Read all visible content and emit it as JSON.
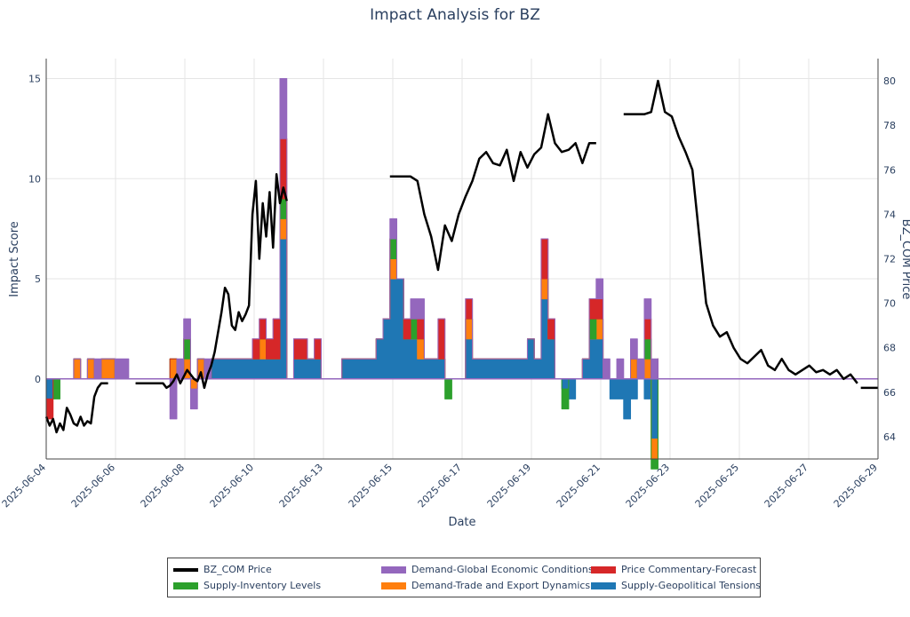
{
  "chart_data": {
    "type": "area",
    "title": "Impact Analysis for BZ",
    "xlabel": "Date",
    "ylabel": "Impact Score",
    "y2label": "BZ_COM Price",
    "ylim": [
      -4,
      16
    ],
    "y2lim": [
      63,
      81
    ],
    "x_ticks": [
      "2025-06-04",
      "2025-06-06",
      "2025-06-08",
      "2025-06-10",
      "2025-06-13",
      "2025-06-15",
      "2025-06-17",
      "2025-06-19",
      "2025-06-21",
      "2025-06-23",
      "2025-06-25",
      "2025-06-27",
      "2025-06-29"
    ],
    "y_ticks": [
      0,
      5,
      10,
      15
    ],
    "y2_ticks": [
      64,
      66,
      68,
      70,
      72,
      74,
      76,
      78,
      80
    ],
    "grid": true,
    "legend_position": "bottom",
    "colors": {
      "price": "#000000",
      "inventory": "#2ca02c",
      "economic": "#9467bd",
      "trade": "#ff7f0e",
      "commentary": "#d62728",
      "geopolitical": "#1f77b4"
    },
    "legend": [
      {
        "key": "price",
        "label": "BZ_COM Price"
      },
      {
        "key": "economic",
        "label": "Demand-Global Economic Conditions"
      },
      {
        "key": "commentary",
        "label": "Price Commentary-Forecast"
      },
      {
        "key": "inventory",
        "label": "Supply-Inventory Levels"
      },
      {
        "key": "trade",
        "label": "Demand-Trade and Export Dynamics"
      },
      {
        "key": "geopolitical",
        "label": "Supply-Geopolitical Tensions"
      }
    ],
    "x_index": [
      0,
      0.5,
      1,
      1.5,
      2,
      2.5,
      3,
      3.5,
      4,
      4.5,
      5,
      5.5,
      6,
      6.5,
      7,
      7.5,
      8,
      8.5,
      9,
      9.5,
      10,
      10.5,
      11,
      11.5,
      12,
      12.5,
      13,
      13.5,
      14,
      14.5,
      15,
      15.5,
      16,
      16.5,
      17,
      17.5,
      18,
      18.5,
      19,
      19.5,
      20,
      20.5,
      21,
      21.5,
      22,
      22.5,
      23,
      23.5,
      24,
      24.5,
      25,
      25.5,
      26,
      26.5,
      27,
      27.5,
      28,
      28.5,
      29,
      29.5,
      30,
      30.5,
      31,
      31.5,
      32,
      32.5,
      33,
      33.5,
      34,
      34.5,
      35,
      35.5,
      36,
      36.5,
      37,
      37.5,
      38,
      38.5,
      39,
      39.5,
      40,
      40.5,
      41,
      41.5,
      42,
      42.5,
      43,
      43.5,
      44,
      44.5
    ],
    "series": [
      {
        "key": "geopolitical",
        "name": "Supply-Geopolitical Tensions",
        "values": [
          -1,
          0,
          0,
          0,
          0,
          0,
          0,
          0,
          0,
          0,
          0,
          0,
          0,
          0,
          0,
          0,
          0,
          0,
          0,
          0,
          0,
          0,
          0,
          0,
          1,
          1,
          1,
          1,
          1,
          1,
          1,
          1,
          1,
          1,
          7,
          0,
          1,
          1,
          1,
          1,
          0,
          0,
          0,
          1,
          1,
          1,
          1,
          1,
          2,
          3,
          5,
          5,
          2,
          2,
          1,
          1,
          1,
          1,
          0,
          0,
          0,
          2,
          1,
          1,
          1,
          1,
          1,
          1,
          1,
          1,
          2,
          1,
          4,
          2,
          0,
          -0.5,
          -1,
          0,
          1,
          2,
          2,
          0,
          -1,
          -1,
          -2,
          -1,
          0,
          -1,
          -3,
          0
        ]
      },
      {
        "key": "trade",
        "name": "Demand-Trade and Export Dynamics",
        "values": [
          0,
          0,
          0,
          0,
          1,
          0,
          1,
          0,
          1,
          1,
          0,
          0,
          0,
          0,
          0,
          0,
          0,
          0,
          1,
          0,
          1,
          -0.5,
          1,
          0,
          0,
          0,
          0,
          0,
          0,
          0,
          0,
          1,
          0,
          0,
          1,
          0,
          0,
          0,
          0,
          0,
          0,
          0,
          0,
          0,
          0,
          0,
          0,
          0,
          0,
          0,
          1,
          0,
          0,
          0,
          1,
          0,
          0,
          0,
          0,
          0,
          0,
          1,
          0,
          0,
          0,
          0,
          0,
          0,
          0,
          0,
          0,
          0,
          1,
          0,
          0,
          0,
          0,
          0,
          0,
          0,
          1,
          0,
          0,
          0,
          0,
          1,
          0,
          1,
          -1,
          1
        ]
      },
      {
        "key": "inventory",
        "name": "Supply-Inventory Levels",
        "values": [
          0,
          -1,
          0,
          0,
          0,
          0,
          0,
          0,
          0,
          0,
          0,
          0,
          0,
          0,
          0,
          0,
          0,
          0,
          0,
          0,
          1,
          0,
          0,
          0,
          0,
          0,
          0,
          0,
          0,
          0,
          0,
          0,
          0,
          0,
          1,
          0,
          0,
          0,
          0,
          0,
          0,
          0,
          0,
          0,
          0,
          0,
          0,
          0,
          0,
          0,
          1,
          0,
          0,
          1,
          0,
          0,
          0,
          0,
          -1,
          0,
          0,
          0,
          0,
          0,
          0,
          0,
          0,
          0,
          0,
          0,
          0,
          0,
          0,
          0,
          0,
          -1,
          0,
          0,
          0,
          1,
          0,
          0,
          0,
          0,
          0,
          0,
          0,
          1,
          -0.5,
          0
        ]
      },
      {
        "key": "commentary",
        "name": "Price Commentary-Forecast",
        "values": [
          -1,
          0,
          0,
          0,
          0,
          0,
          0,
          0,
          0,
          0,
          0,
          0,
          0,
          0,
          0,
          0,
          0,
          0,
          0,
          0,
          0,
          0,
          0,
          0,
          0,
          0,
          0,
          0,
          0,
          0,
          1,
          1,
          1,
          2,
          3,
          0,
          1,
          1,
          0,
          1,
          0,
          0,
          0,
          0,
          0,
          0,
          0,
          0,
          0,
          0,
          0,
          0,
          1,
          0,
          1,
          0,
          0,
          2,
          0,
          0,
          0,
          1,
          0,
          0,
          0,
          0,
          0,
          0,
          0,
          0,
          0,
          0,
          2,
          1,
          0,
          0,
          0,
          0,
          0,
          1,
          1,
          0,
          0,
          0,
          0,
          0,
          0,
          1,
          0,
          0
        ]
      },
      {
        "key": "economic",
        "name": "Demand-Global Economic Conditions",
        "values": [
          0,
          0,
          0,
          0,
          0,
          0,
          0,
          1,
          0,
          0,
          1,
          1,
          0,
          0,
          0,
          0,
          0,
          0,
          -2,
          1,
          1,
          -1,
          0,
          1,
          0,
          0,
          0,
          0,
          0,
          0,
          0,
          0,
          0,
          0,
          3,
          0,
          0,
          0,
          0,
          0,
          0,
          0,
          0,
          0,
          0,
          0,
          0,
          0,
          0,
          0,
          1,
          0,
          0,
          1,
          1,
          0,
          0,
          0,
          0,
          0,
          0,
          0,
          0,
          0,
          0,
          0,
          0,
          0,
          0,
          0,
          0,
          0,
          0,
          0,
          0,
          0,
          0,
          0,
          0,
          0,
          1,
          1,
          0,
          1,
          0,
          1,
          1,
          1,
          1,
          0
        ]
      }
    ],
    "price": {
      "name": "BZ_COM Price",
      "segments": [
        {
          "x": [
            0,
            0.5,
            1,
            1.5,
            2,
            2.5,
            3,
            3.5,
            4,
            4.5,
            5,
            5.5,
            6,
            6.5,
            7,
            7.5,
            8,
            8.5,
            9
          ],
          "y": [
            64.9,
            64.5,
            64.8,
            64.2,
            64.6,
            64.3,
            65.3,
            65.0,
            64.6,
            64.5,
            64.9,
            64.5,
            64.7,
            64.6,
            65.8,
            66.2,
            66.4,
            66.4,
            66.4
          ]
        },
        {
          "x": [
            13,
            14,
            15,
            16,
            17,
            17.5,
            18,
            18.5,
            19,
            19.5,
            20,
            20.5,
            21,
            21.5,
            22,
            22.5,
            23,
            23.5,
            24,
            24.5,
            25,
            25.5,
            26,
            26.5,
            27,
            27.5,
            28,
            28.5,
            29,
            29.5,
            30,
            30.5,
            31,
            31.5,
            32,
            32.5,
            33,
            33.5,
            34,
            34.5,
            35
          ],
          "y": [
            66.4,
            66.4,
            66.4,
            66.4,
            66.4,
            66.2,
            66.3,
            66.5,
            66.8,
            66.4,
            66.7,
            67.0,
            66.8,
            66.6,
            66.5,
            66.9,
            66.2,
            66.8,
            67.2,
            67.8,
            68.7,
            69.6,
            70.7,
            70.4,
            69.0,
            68.8,
            69.6,
            69.2,
            69.5,
            69.9,
            74.0,
            75.5,
            72.0,
            74.5,
            73.0,
            75.0,
            72.5,
            75.8,
            74.5,
            75.2,
            74.6
          ]
        },
        {
          "x": [
            50,
            51,
            52,
            53,
            54,
            55,
            56,
            57,
            58,
            59,
            60,
            61,
            62,
            63,
            64,
            65,
            66,
            67,
            68,
            69,
            70,
            71,
            72,
            73,
            74,
            75,
            76,
            77,
            78,
            79,
            80
          ],
          "y": [
            75.7,
            75.7,
            75.7,
            75.7,
            75.5,
            74.0,
            73.0,
            71.5,
            73.5,
            72.8,
            74.0,
            74.8,
            75.5,
            76.5,
            76.8,
            76.3,
            76.2,
            76.9,
            75.5,
            76.8,
            76.1,
            76.7,
            77.0,
            78.5,
            77.2,
            76.8,
            76.9,
            77.2,
            76.3,
            77.2,
            77.2
          ]
        },
        {
          "x": [
            84,
            85,
            86,
            87,
            88,
            89,
            90,
            91,
            92,
            93,
            94,
            95,
            96,
            97,
            98,
            99,
            100,
            101,
            102,
            103,
            104,
            105,
            106,
            107,
            108,
            109,
            110,
            111,
            112,
            113,
            114,
            115,
            116,
            117,
            118
          ],
          "y": [
            78.5,
            78.5,
            78.5,
            78.5,
            78.6,
            80.0,
            78.6,
            78.4,
            77.5,
            76.8,
            76.0,
            73.0,
            70.0,
            69.0,
            68.5,
            68.7,
            68.0,
            67.5,
            67.3,
            67.6,
            67.9,
            67.2,
            67.0,
            67.5,
            67.0,
            66.8,
            67.0,
            67.2,
            66.9,
            67.0,
            66.8,
            67.0,
            66.6,
            66.8,
            66.4
          ]
        },
        {
          "x": [
            118.5,
            119.5,
            121
          ],
          "y": [
            66.2,
            66.2,
            66.2
          ]
        }
      ]
    }
  }
}
